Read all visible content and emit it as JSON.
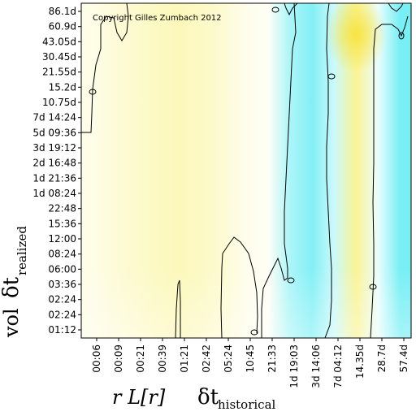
{
  "chart_data": {
    "type": "heatmap",
    "copyright": "Copyright Gilles Zumbach 2012",
    "x_ticks": [
      "00:06",
      "00:09",
      "00:21",
      "00:39",
      "01:21",
      "02:42",
      "05:24",
      "10:45",
      "21:33",
      "1d 19:03",
      "3d 14:06",
      "7d 04:12",
      "14.35d",
      "28.7d",
      "57.4d"
    ],
    "y_ticks": [
      "86.1d",
      "60.9d",
      "43.05d",
      "30.45d",
      "21.55d",
      "15.2d",
      "10.75d",
      "7d 14:24",
      "5d 09:36",
      "3d 19:12",
      "2d 16:48",
      "1d 21:36",
      "1d 08:24",
      "22:48",
      "15:36",
      "12:00",
      "08:24",
      "06:00",
      "03:36",
      "02:24",
      "02:24",
      "01:12"
    ],
    "x_title": {
      "prefix": "r L[r]",
      "symbol": "δt",
      "subscript": "historical"
    },
    "y_title": {
      "prefix": "vol",
      "symbol": "δt",
      "subscript": "realized"
    },
    "colors": {
      "positive": "#f5eb3c",
      "negative": "#2ee6ee",
      "neutral": "#ffffff"
    },
    "column_values": [
      0.12,
      0.2,
      0.25,
      0.32,
      0.35,
      0.3,
      0.22,
      0.1,
      0.05,
      -0.4,
      -0.6,
      -0.25,
      0.55,
      -0.1,
      -0.65
    ],
    "grid": false
  }
}
